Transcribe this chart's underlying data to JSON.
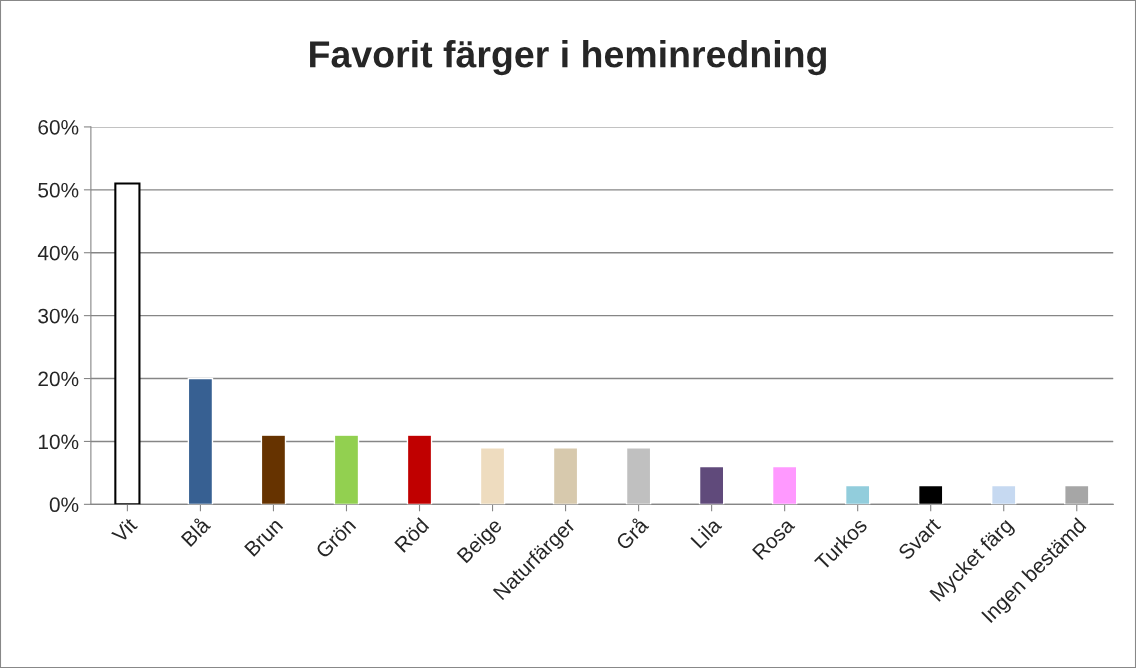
{
  "chart_data": {
    "type": "bar",
    "title": "Favorit färger i heminredning",
    "categories": [
      "Vit",
      "Blå",
      "Brun",
      "Grön",
      "Röd",
      "Beige",
      "Naturfärger",
      "Grå",
      "Lila",
      "Rosa",
      "Turkos",
      "Svart",
      "Mycket färg",
      "Ingen bestämd"
    ],
    "values": [
      51,
      20,
      11,
      11,
      11,
      9,
      9,
      9,
      6,
      6,
      3,
      3,
      3,
      3
    ],
    "colors": [
      "#ffffff",
      "#376092",
      "#663300",
      "#92d050",
      "#c00000",
      "#eedcbf",
      "#d7c9ad",
      "#c0c0c0",
      "#604a7b",
      "#ff99ff",
      "#92cddc",
      "#000000",
      "#c6d9f1",
      "#a6a6a6"
    ],
    "ylim": [
      0,
      60
    ],
    "yticks": [
      {
        "value": 0,
        "label": "0%"
      },
      {
        "value": 10,
        "label": "10%"
      },
      {
        "value": 20,
        "label": "20%"
      },
      {
        "value": 30,
        "label": "30%"
      },
      {
        "value": 40,
        "label": "40%"
      },
      {
        "value": 50,
        "label": "50%"
      },
      {
        "value": 60,
        "label": "60%"
      }
    ],
    "grid": "y",
    "legend": false
  }
}
